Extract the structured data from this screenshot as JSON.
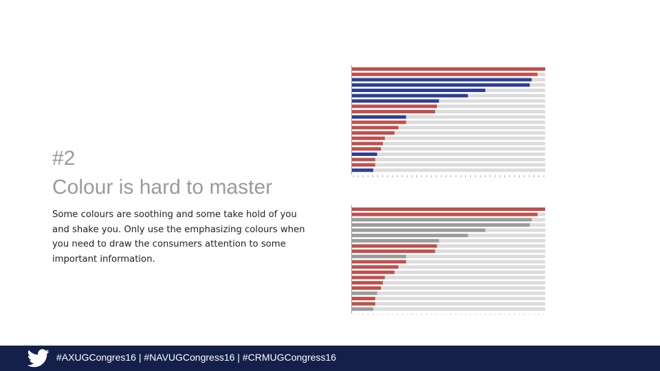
{
  "slide": {
    "heading_line1": "#2",
    "heading_line2": "Colour is hard to master",
    "body": "Some colours are soothing and some take hold of you and shake you. Only use the emphasizing colours when you need to draw the consumers attention to some important information."
  },
  "footer": {
    "hashtags": "#AXUGCongres16 | #NAVUGCongress16 | #CRMUGCongress16",
    "icon": "twitter-bird-icon"
  },
  "colors": {
    "red": "#c0504d",
    "blue": "#2e3f93",
    "gray": "#9b9b9b",
    "track": "#dcdcdc",
    "footer": "#15204a"
  },
  "chart_data": [
    {
      "type": "bar",
      "orientation": "horizontal",
      "max": 100,
      "values": [
        100,
        96,
        93,
        92,
        69,
        60,
        45,
        44,
        43,
        28,
        28,
        24,
        22,
        17,
        16,
        15,
        13,
        12,
        12,
        11
      ],
      "colors": [
        "red",
        "red",
        "blue",
        "blue",
        "blue",
        "blue",
        "blue",
        "red",
        "red",
        "blue",
        "red",
        "red",
        "red",
        "red",
        "red",
        "red",
        "blue",
        "red",
        "red",
        "blue"
      ]
    },
    {
      "type": "bar",
      "orientation": "horizontal",
      "max": 100,
      "values": [
        100,
        96,
        93,
        92,
        69,
        60,
        45,
        44,
        43,
        28,
        28,
        24,
        22,
        17,
        16,
        15,
        13,
        12,
        12,
        11
      ],
      "colors": [
        "red",
        "red",
        "gray",
        "gray",
        "gray",
        "gray",
        "gray",
        "red",
        "red",
        "gray",
        "red",
        "red",
        "red",
        "red",
        "red",
        "red",
        "gray",
        "red",
        "red",
        "gray"
      ]
    }
  ]
}
